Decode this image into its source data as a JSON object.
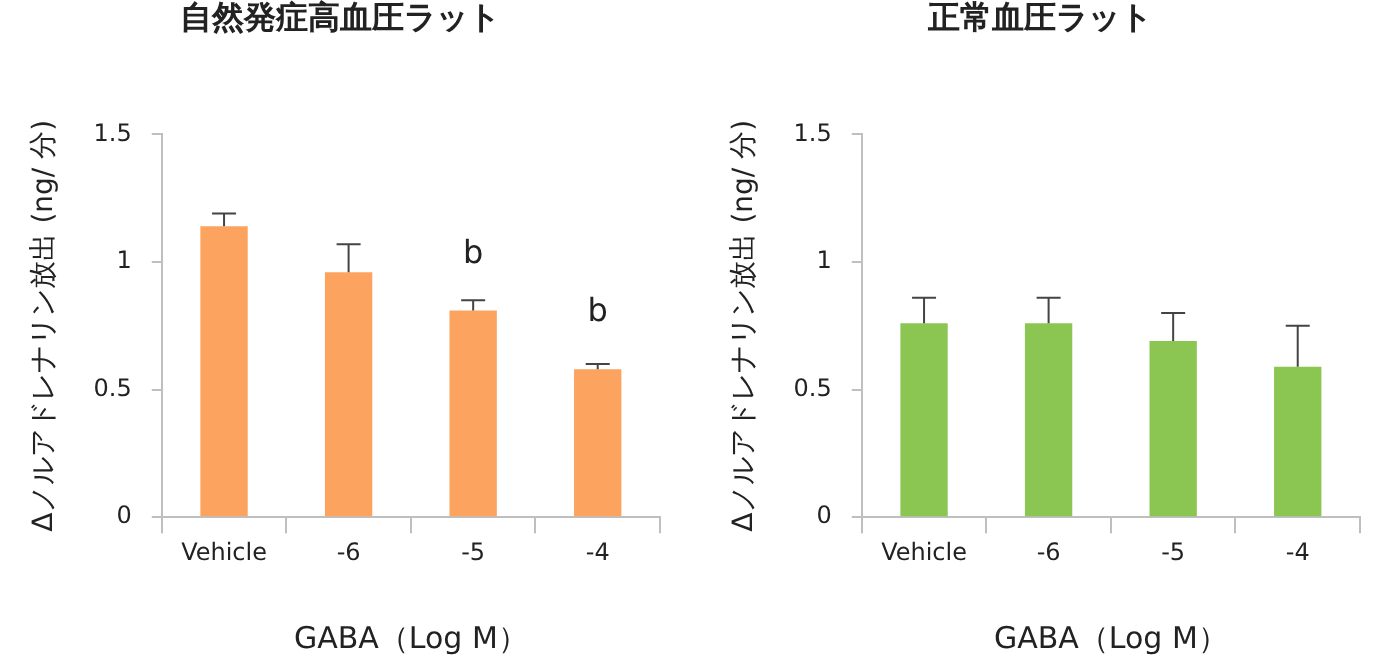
{
  "chart_data": [
    {
      "type": "bar",
      "title": "自然発症高血圧ラット",
      "xlabel": "GABA（Log M）",
      "ylabel": "Δノルアドレナリン放出 (ng/ 分)",
      "categories": [
        "Vehicle",
        "-6",
        "-5",
        "-4"
      ],
      "series": [
        {
          "color": "#fba35f",
          "values": [
            1.14,
            0.96,
            0.81,
            0.58
          ],
          "errors": [
            0.05,
            0.11,
            0.04,
            0.02
          ]
        }
      ],
      "ylim": [
        0,
        1.5
      ],
      "yticks": [
        0,
        0.5,
        1,
        1.5
      ],
      "grid": false,
      "legend": false,
      "annotations": [
        {
          "text": "b",
          "x": "-5",
          "y": 0.81
        },
        {
          "text": "b",
          "x": "-4",
          "y": 0.58
        }
      ]
    },
    {
      "type": "bar",
      "title": "正常血圧ラット",
      "xlabel": "GABA（Log M）",
      "ylabel": "Δノルアドレナリン放出 (ng/ 分)",
      "categories": [
        "Vehicle",
        "-6",
        "-5",
        "-4"
      ],
      "series": [
        {
          "color": "#8bc653",
          "values": [
            0.76,
            0.76,
            0.69,
            0.59
          ],
          "errors": [
            0.1,
            0.1,
            0.11,
            0.16
          ]
        }
      ],
      "ylim": [
        0,
        1.5
      ],
      "yticks": [
        0,
        0.5,
        1,
        1.5
      ],
      "grid": false,
      "legend": false
    }
  ]
}
